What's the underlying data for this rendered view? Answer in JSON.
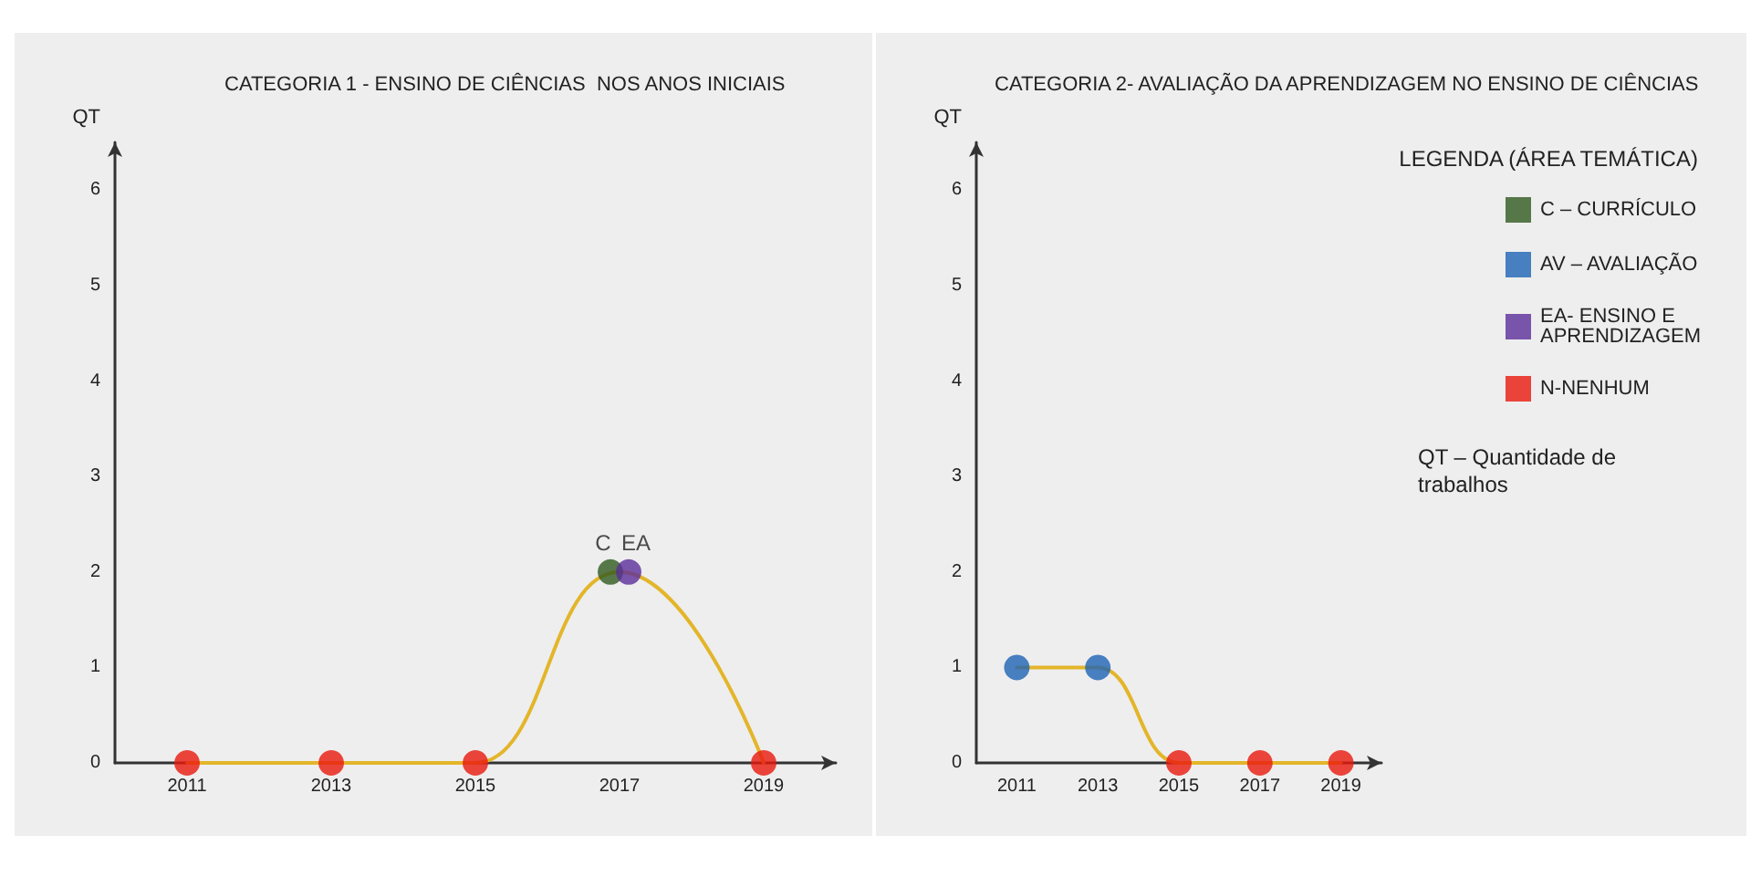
{
  "chart_data": [
    {
      "type": "line",
      "title": "CATEGORIA 1 - ENSINO DE CIÊNCIAS  NOS ANOS INICIAIS",
      "ylabel": "QT",
      "categories": [
        "2011",
        "2013",
        "2015",
        "2017",
        "2019"
      ],
      "ylim": [
        0,
        6.5
      ],
      "yticks": [
        0,
        1,
        2,
        3,
        4,
        5,
        6
      ],
      "grid": false,
      "legend": false,
      "marker": "circle",
      "series": [
        {
          "type": "line",
          "marker": "none",
          "color": "#e3b52a",
          "values": [
            0,
            0,
            0,
            2,
            0
          ]
        },
        {
          "type": "scatter",
          "color": "#2f5a1f",
          "values": [
            null,
            null,
            null,
            2,
            null
          ]
        },
        {
          "type": "scatter",
          "color": "#5b2d9a",
          "values": [
            null,
            null,
            null,
            2,
            null
          ]
        },
        {
          "type": "scatter",
          "color": "#e8180c",
          "values": [
            0,
            0,
            0,
            null,
            0
          ]
        }
      ],
      "annotations": [
        {
          "text": "C",
          "x": "2017",
          "y": 2
        },
        {
          "text": "EA",
          "x": "2017",
          "y": 2
        }
      ]
    },
    {
      "type": "line",
      "title": "CATEGORIA 2- AVALIAÇÃO DA APRENDIZAGEM NO ENSINO DE CIÊNCIAS",
      "ylabel": "QT",
      "legend_title": "LEGENDA (ÁREA TEMÁTICA)",
      "categories": [
        "2011",
        "2013",
        "2015",
        "2017",
        "2019"
      ],
      "ylim": [
        0,
        6.5
      ],
      "yticks": [
        0,
        1,
        2,
        3,
        4,
        5,
        6
      ],
      "grid": false,
      "legend": "top right",
      "marker": "circle",
      "series": [
        {
          "type": "line",
          "marker": "none",
          "color": "#e3b52a",
          "values": [
            1,
            1,
            0,
            0,
            0
          ]
        },
        {
          "type": "scatter",
          "name": "C – CURRÍCULO",
          "color": "#2f5a1f",
          "values": [
            null,
            null,
            null,
            null,
            null
          ]
        },
        {
          "type": "scatter",
          "name": "AV – AVALIAÇÃO",
          "color": "#1d63b4",
          "values": [
            1,
            1,
            null,
            null,
            null
          ]
        },
        {
          "type": "scatter",
          "name": "EA- ENSINO E APRENDIZAGEM",
          "color": "#5b2d9a",
          "values": [
            null,
            null,
            null,
            null,
            null
          ]
        },
        {
          "type": "scatter",
          "name": "N-NENHUM",
          "color": "#e8180c",
          "values": [
            null,
            null,
            0,
            0,
            0
          ]
        }
      ],
      "annotations": [
        "QT – Quantidade de trabalhos"
      ]
    }
  ]
}
